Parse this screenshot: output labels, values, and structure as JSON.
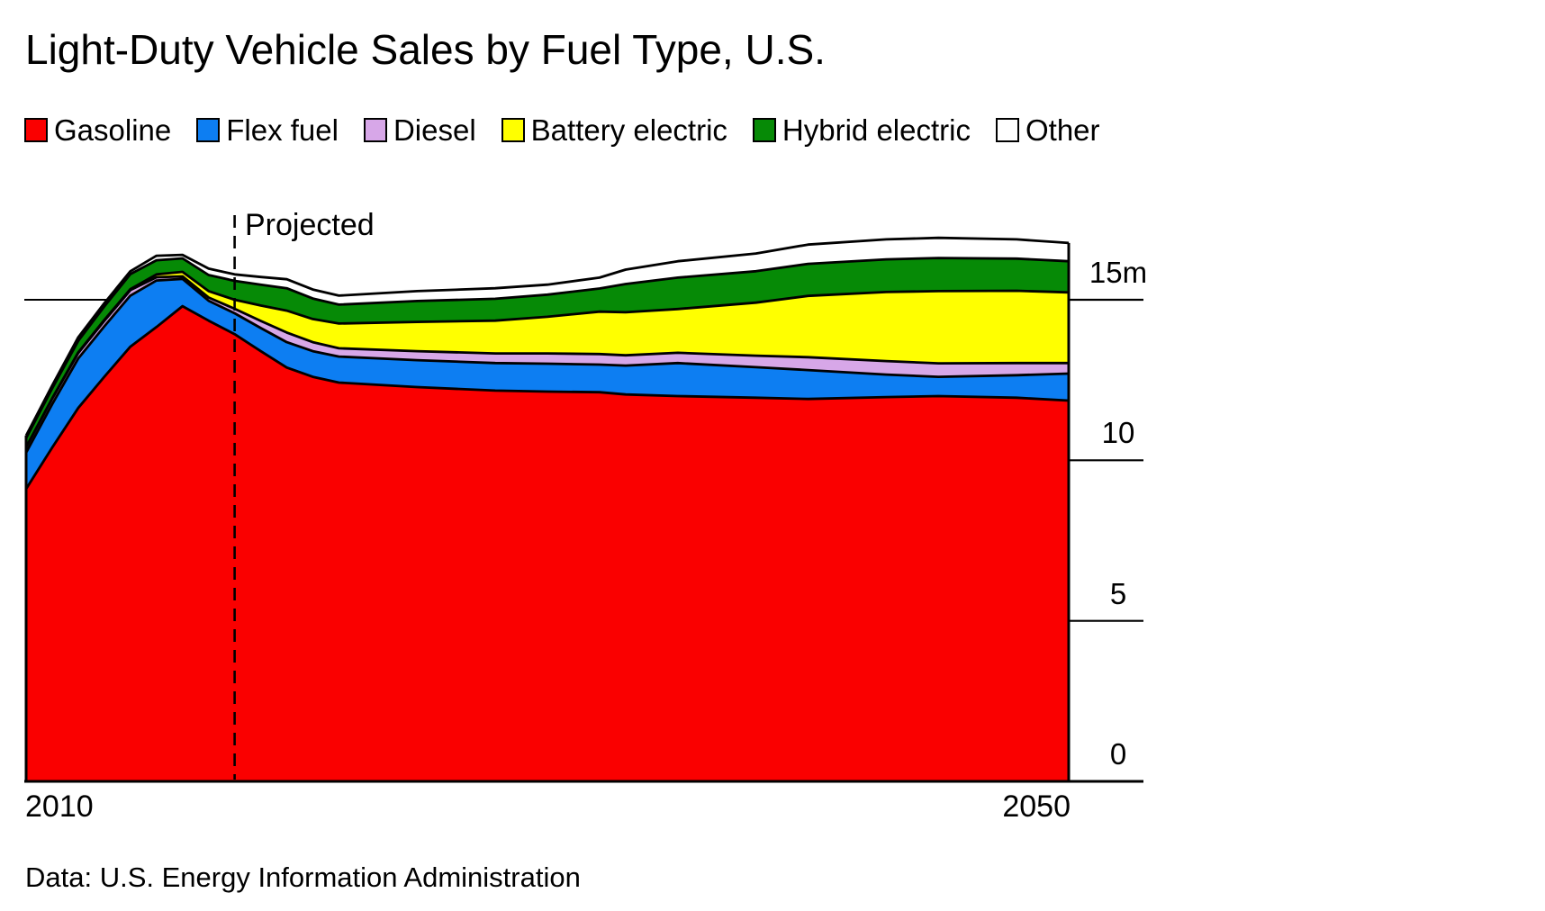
{
  "title": "Light-Duty Vehicle Sales by Fuel Type, U.S.",
  "footer": "Data: U.S. Energy Information Administration",
  "colors": {
    "gasoline": "#fa0000",
    "flex_fuel": "#0d7ef2",
    "diesel": "#d7a7e8",
    "battery_electric": "#ffff00",
    "hybrid_electric": "#068a06",
    "other": "#ffffff",
    "outline": "#000000",
    "background": "#ffffff"
  },
  "legend": {
    "items": [
      {
        "label": "Gasoline",
        "color_key": "gasoline"
      },
      {
        "label": "Flex fuel",
        "color_key": "flex_fuel"
      },
      {
        "label": "Diesel",
        "color_key": "diesel"
      },
      {
        "label": "Battery electric",
        "color_key": "battery_electric"
      },
      {
        "label": "Hybrid electric",
        "color_key": "hybrid_electric"
      },
      {
        "label": "Other",
        "color_key": "other"
      }
    ]
  },
  "chart_data": {
    "type": "area",
    "stacked": true,
    "title": "Light-Duty Vehicle Sales by Fuel Type, U.S.",
    "unit": "million vehicles",
    "x_range": [
      2010,
      2050
    ],
    "x_min_label": "2010",
    "x_max_label": "2050",
    "ylim": [
      0,
      15
    ],
    "yticks": [
      {
        "value": 0,
        "label": "0"
      },
      {
        "value": 5,
        "label": "5"
      },
      {
        "value": 10,
        "label": "10"
      },
      {
        "value": 15,
        "label": "15m"
      }
    ],
    "grid": "left-segment-at-15m",
    "legend_position": "top",
    "projection": {
      "label": "Projected",
      "start_year": 2018
    },
    "x": [
      2010,
      2011,
      2012,
      2013,
      2014,
      2015,
      2016,
      2017,
      2018,
      2019,
      2020,
      2021,
      2022,
      2025,
      2028,
      2030,
      2032,
      2033,
      2035,
      2038,
      2040,
      2043,
      2045,
      2048,
      2050
    ],
    "series": [
      {
        "name": "Gasoline",
        "color_key": "gasoline",
        "values": [
          9.11,
          10.4,
          11.63,
          12.6,
          13.54,
          14.15,
          14.8,
          14.35,
          13.93,
          13.4,
          12.89,
          12.6,
          12.42,
          12.28,
          12.17,
          12.14,
          12.12,
          12.05,
          12.0,
          11.95,
          11.91,
          11.97,
          12.0,
          11.95,
          11.86
        ]
      },
      {
        "name": "Flex fuel",
        "color_key": "flex_fuel",
        "values": [
          1.13,
          1.35,
          1.54,
          1.57,
          1.59,
          1.45,
          0.85,
          0.62,
          0.65,
          0.72,
          0.79,
          0.8,
          0.81,
          0.84,
          0.86,
          0.87,
          0.86,
          0.9,
          1.03,
          0.95,
          0.9,
          0.7,
          0.6,
          0.7,
          0.84
        ]
      },
      {
        "name": "Diesel",
        "color_key": "diesel",
        "values": [
          0.16,
          0.17,
          0.17,
          0.17,
          0.17,
          0.1,
          0.08,
          0.1,
          0.14,
          0.22,
          0.3,
          0.28,
          0.26,
          0.28,
          0.3,
          0.32,
          0.33,
          0.32,
          0.32,
          0.36,
          0.4,
          0.42,
          0.42,
          0.38,
          0.33
        ]
      },
      {
        "name": "Battery electric",
        "color_key": "battery_electric",
        "values": [
          0.01,
          0.01,
          0.02,
          0.03,
          0.03,
          0.09,
          0.14,
          0.2,
          0.28,
          0.48,
          0.68,
          0.72,
          0.77,
          0.91,
          1.02,
          1.14,
          1.32,
          1.34,
          1.36,
          1.65,
          1.91,
          2.15,
          2.25,
          2.25,
          2.2
        ]
      },
      {
        "name": "Hybrid electric",
        "color_key": "hybrid_electric",
        "values": [
          0.28,
          0.31,
          0.36,
          0.42,
          0.47,
          0.44,
          0.42,
          0.5,
          0.59,
          0.65,
          0.7,
          0.64,
          0.59,
          0.65,
          0.68,
          0.69,
          0.72,
          0.88,
          0.98,
          0.98,
          1.0,
          1.02,
          1.03,
          1.0,
          0.97
        ]
      },
      {
        "name": "Other",
        "color_key": "other",
        "values": [
          0.08,
          0.09,
          0.11,
          0.1,
          0.09,
          0.14,
          0.11,
          0.2,
          0.2,
          0.24,
          0.28,
          0.28,
          0.28,
          0.31,
          0.33,
          0.31,
          0.34,
          0.45,
          0.51,
          0.55,
          0.6,
          0.62,
          0.63,
          0.6,
          0.57
        ]
      }
    ]
  }
}
